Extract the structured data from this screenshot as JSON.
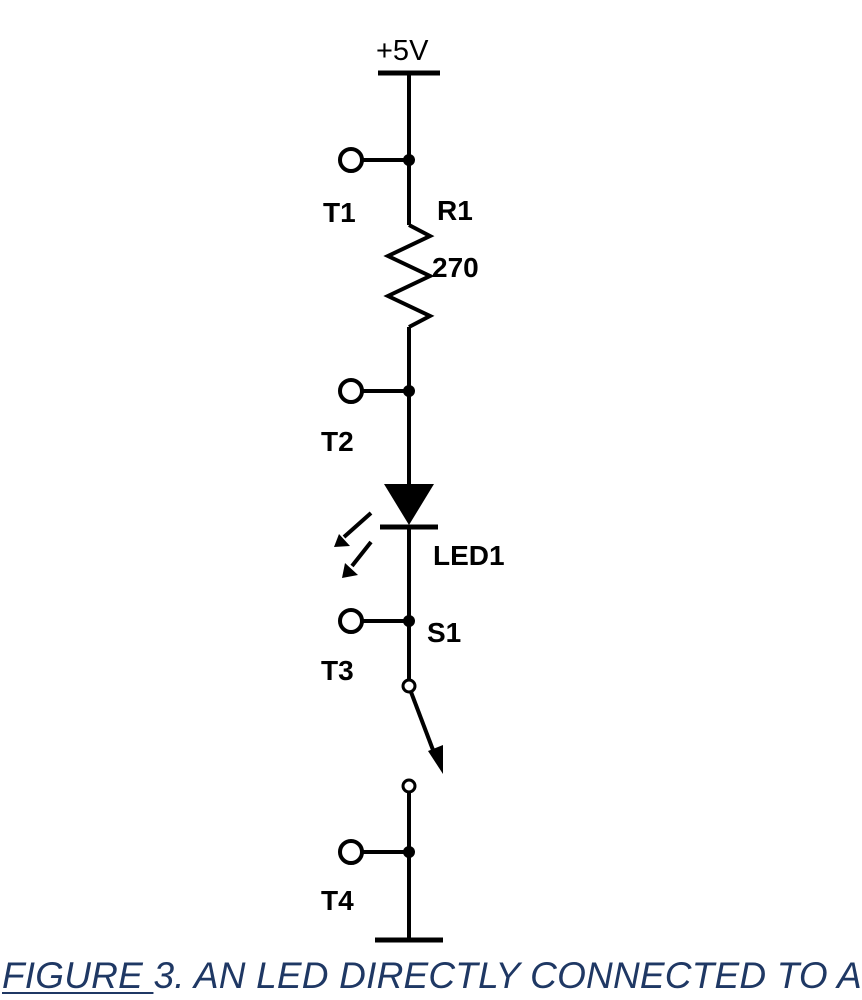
{
  "schematic": {
    "supply_label": "+5V",
    "resistor_ref": "R1",
    "resistor_value": "270",
    "led_ref": "LED1",
    "switch_ref": "S1",
    "terminals": [
      "T1",
      "T2",
      "T3",
      "T4"
    ]
  },
  "caption": {
    "underlined": "FIGURE ",
    "rest": "3. AN LED DIRECTLY CONNECTED TO A",
    "color": "#1f3864"
  },
  "colors": {
    "wire": "#000000",
    "background": "#ffffff"
  }
}
